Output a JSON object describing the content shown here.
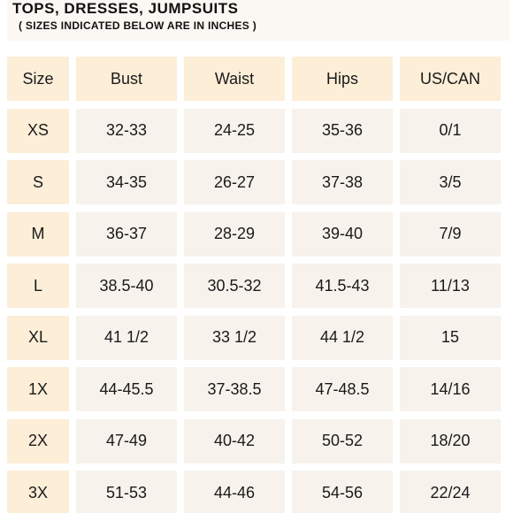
{
  "title": "TOPS, DRESSES, JUMPSUITS",
  "subtitle": "( SIZES INDICATED BELOW ARE IN INCHES )",
  "table": {
    "headers": [
      "Size",
      "Bust",
      "Waist",
      "Hips",
      "US/CAN"
    ],
    "rows": [
      [
        "XS",
        "32-33",
        "24-25",
        "35-36",
        "0/1"
      ],
      [
        "S",
        "34-35",
        "26-27",
        "37-38",
        "3/5"
      ],
      [
        "M",
        "36-37",
        "28-29",
        "39-40",
        "7/9"
      ],
      [
        "L",
        "38.5-40",
        "30.5-32",
        "41.5-43",
        "11/13"
      ],
      [
        "XL",
        "41 1/2",
        "33 1/2",
        "44 1/2",
        "15"
      ],
      [
        "1X",
        "44-45.5",
        "37-38.5",
        "47-48.5",
        "14/16"
      ],
      [
        "2X",
        "47-49",
        "40-42",
        "50-52",
        "18/20"
      ],
      [
        "3X",
        "51-53",
        "44-46",
        "54-56",
        "22/24"
      ]
    ]
  },
  "colors": {
    "header_cell_bg": "#fdeed8",
    "body_cell_bg": "#f7f2ec",
    "title_bg": "#fbf8f3",
    "text": "#1a1a1a"
  }
}
